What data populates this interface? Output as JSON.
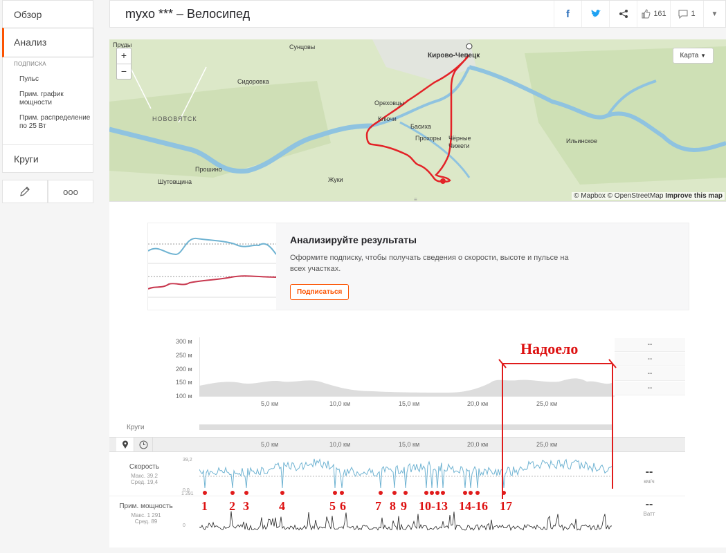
{
  "sidebar": {
    "overview": "Обзор",
    "analysis": "Анализ",
    "sub_title": "ПОДПИСКА",
    "sub_items": [
      "Пульс",
      "Прим. график мощности",
      "Прим. распределение по 25 Вт"
    ],
    "laps": "Круги",
    "more": "ooo"
  },
  "header": {
    "title": "myxo *** – Велосипед",
    "likes": "161",
    "comments": "1"
  },
  "map": {
    "labels": [
      "Пруды",
      "Сунцовы",
      "Кирово-Чепецк",
      "Сидоровка",
      "НОВОВЯТСК",
      "Ореховцы",
      "Ключи",
      "Басиха",
      "Прохоры",
      "Чёрные Чижеги",
      "Ильинское",
      "Прошино",
      "Шутовщина",
      "Жуки"
    ],
    "type_button": "Карта",
    "credit_mapbox": "© Mapbox",
    "credit_osm": "© OpenStreetMap",
    "credit_improve": "Improve this map"
  },
  "promo": {
    "title": "Анализируйте результаты",
    "body": "Оформите подписку, чтобы получать сведения о скорости, высоте и пульсе на всех участках.",
    "button": "Подписаться"
  },
  "elevation": {
    "y_ticks": [
      "300 м",
      "250 м",
      "200 м",
      "150 м",
      "100 м"
    ],
    "x_ticks": [
      "5,0 км",
      "10,0 км",
      "15,0 км",
      "20,0 км",
      "25,0 км"
    ],
    "stat_placeholders": [
      "--",
      "--",
      "--",
      "--"
    ]
  },
  "laps_label": "Круги",
  "speed": {
    "label": "Скорость",
    "max": "Макс. 39,2",
    "avg": "Сред. 19,4",
    "y_max": "39,2",
    "y_min": "0,0",
    "value": "--",
    "unit": "км/ч"
  },
  "power": {
    "label": "Прим. мощность",
    "max": "Макс. 1 291",
    "avg": "Сред. 89",
    "y_max": "1 291",
    "y_min": "0",
    "value": "--",
    "unit": "Ватт"
  },
  "annotations": {
    "tired": "Надоело",
    "markers": [
      "1",
      "2",
      "3",
      "4",
      "5",
      "6",
      "7",
      "8",
      "9",
      "10-13",
      "14-16",
      "17"
    ]
  }
}
